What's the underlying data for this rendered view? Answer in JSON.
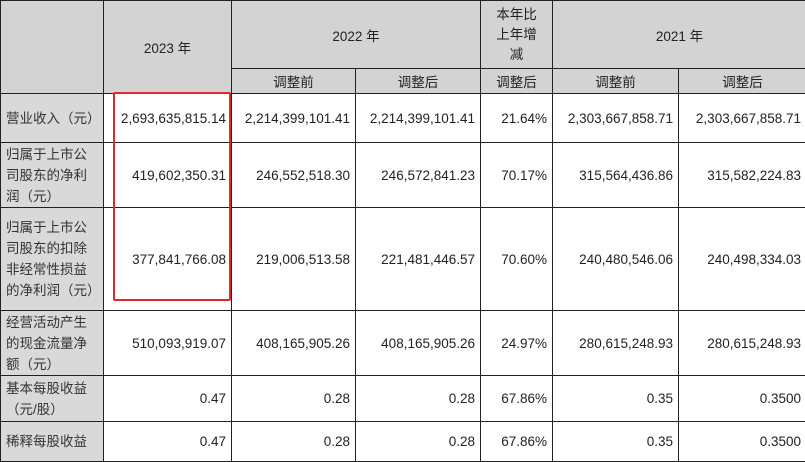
{
  "header": {
    "y2023": "2023 年",
    "y2022": "2022 年",
    "change": "本年比上年增减",
    "y2021": "2021 年",
    "sub": [
      "调整前",
      "调整后",
      "调整后",
      "调整前",
      "调整后"
    ]
  },
  "rows": [
    {
      "label": "营业收入（元）",
      "values": [
        "2,693,635,815.14",
        "2,214,399,101.41",
        "2,214,399,101.41",
        "21.64%",
        "2,303,667,858.71",
        "2,303,667,858.71"
      ]
    },
    {
      "label": "归属于上市公司股东的净利润（元）",
      "values": [
        "419,602,350.31",
        "246,552,518.30",
        "246,572,841.23",
        "70.17%",
        "315,564,436.86",
        "315,582,224.83"
      ]
    },
    {
      "label": "归属于上市公司股东的扣除非经常性损益的净利润（元）",
      "values": [
        "377,841,766.08",
        "219,006,513.58",
        "221,481,446.57",
        "70.60%",
        "240,480,546.06",
        "240,498,334.03"
      ]
    },
    {
      "label": "经营活动产生的现金流量净额（元）",
      "values": [
        "510,093,919.07",
        "408,165,905.26",
        "408,165,905.26",
        "24.97%",
        "280,615,248.93",
        "280,615,248.93"
      ]
    },
    {
      "label": "基本每股收益（元/股）",
      "values": [
        "0.47",
        "0.28",
        "0.28",
        "67.86%",
        "0.35",
        "0.3500"
      ]
    },
    {
      "label": "稀释每股收益",
      "values": [
        "0.47",
        "0.28",
        "0.28",
        "67.86%",
        "0.35",
        "0.3500"
      ]
    }
  ],
  "highlight_color": "#e02a2a"
}
